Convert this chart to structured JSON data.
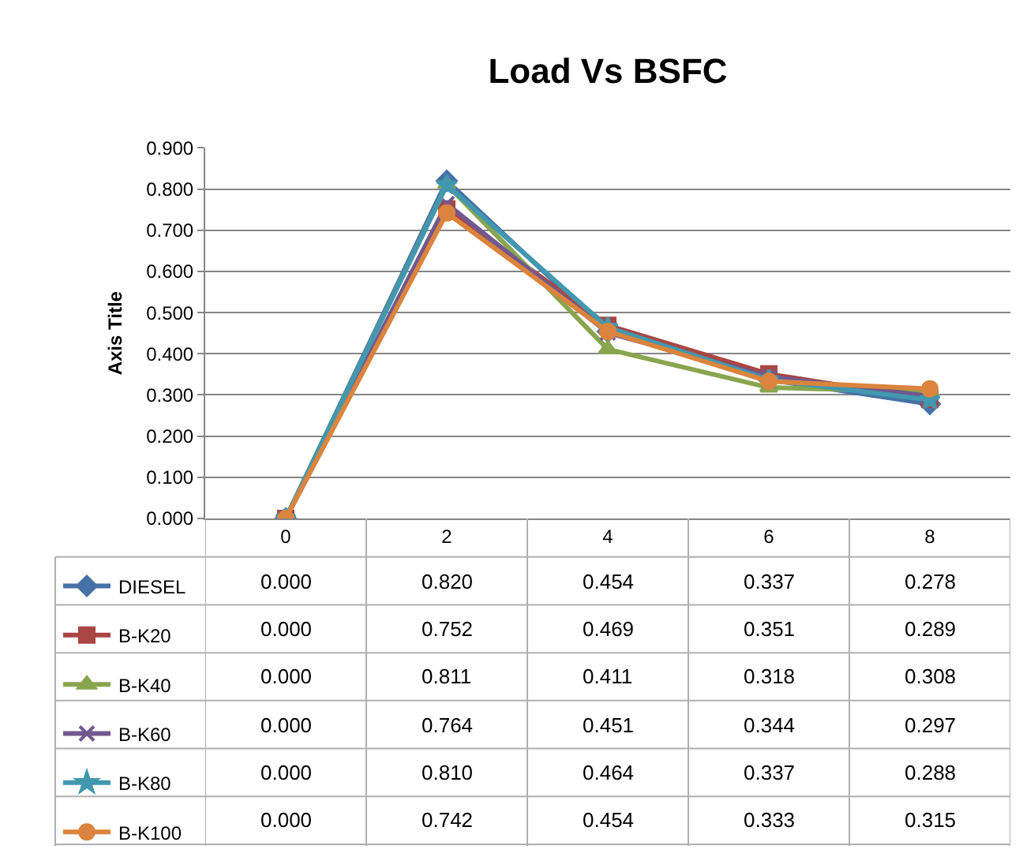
{
  "chart_data": {
    "type": "line",
    "title": "Load Vs BSFC",
    "ylabel": "Axis Title",
    "categories": [
      "0",
      "2",
      "4",
      "6",
      "8"
    ],
    "ylim": [
      0,
      0.9
    ],
    "yticks": [
      {
        "value": 0,
        "label": "0.000"
      },
      {
        "value": 0.1,
        "label": "0.100"
      },
      {
        "value": 0.2,
        "label": "0.200"
      },
      {
        "value": 0.3,
        "label": "0.300"
      },
      {
        "value": 0.4,
        "label": "0.400"
      },
      {
        "value": 0.5,
        "label": "0.500"
      },
      {
        "value": 0.6,
        "label": "0.600"
      },
      {
        "value": 0.7,
        "label": "0.700"
      },
      {
        "value": 0.8,
        "label": "0.800"
      },
      {
        "value": 0.9,
        "label": "0.900"
      }
    ],
    "grid": "y",
    "line_style": "solid",
    "legend": "bottom left",
    "series": [
      {
        "name": "DIESEL",
        "color": "#4572a7",
        "marker": "diamond",
        "values": [
          0.0,
          0.82,
          0.454,
          0.337,
          0.278
        ],
        "value_labels": [
          "0.000",
          "0.820",
          "0.454",
          "0.337",
          "0.278"
        ]
      },
      {
        "name": "B-K20",
        "color": "#aa4643",
        "marker": "square",
        "values": [
          0.0,
          0.752,
          0.469,
          0.351,
          0.289
        ],
        "value_labels": [
          "0.000",
          "0.752",
          "0.469",
          "0.351",
          "0.289"
        ]
      },
      {
        "name": "B-K40",
        "color": "#89a54e",
        "marker": "triangle",
        "values": [
          0.0,
          0.811,
          0.411,
          0.318,
          0.308
        ],
        "value_labels": [
          "0.000",
          "0.811",
          "0.411",
          "0.318",
          "0.308"
        ]
      },
      {
        "name": "B-K60",
        "color": "#71588f",
        "marker": "cross",
        "values": [
          0.0,
          0.764,
          0.451,
          0.344,
          0.297
        ],
        "value_labels": [
          "0.000",
          "0.764",
          "0.451",
          "0.344",
          "0.297"
        ]
      },
      {
        "name": "B-K80",
        "color": "#4198af",
        "marker": "star",
        "values": [
          0.0,
          0.81,
          0.464,
          0.337,
          0.288
        ],
        "value_labels": [
          "0.000",
          "0.810",
          "0.464",
          "0.337",
          "0.288"
        ]
      },
      {
        "name": "B-K100",
        "color": "#db843d",
        "marker": "circle",
        "values": [
          0.0,
          0.742,
          0.454,
          0.333,
          0.315
        ],
        "value_labels": [
          "0.000",
          "0.742",
          "0.454",
          "0.333",
          "0.315"
        ]
      }
    ]
  }
}
